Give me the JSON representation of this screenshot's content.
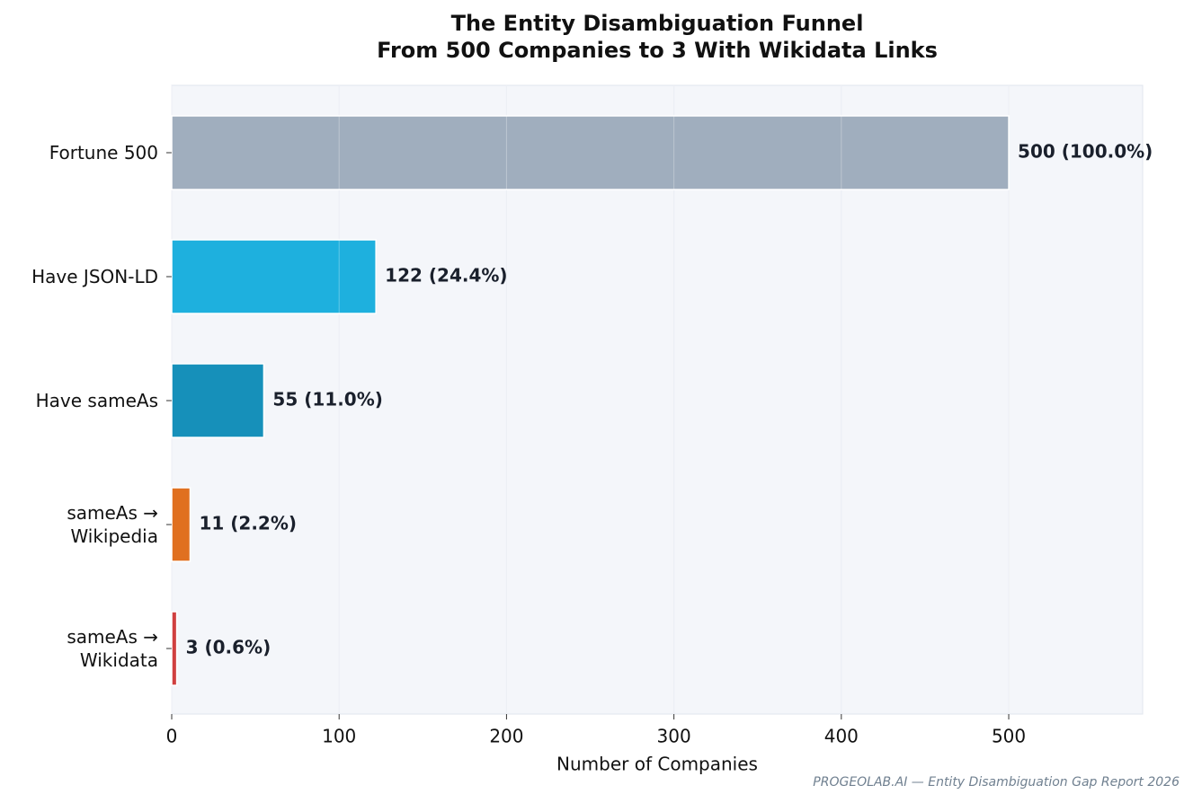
{
  "chart_data": {
    "type": "barh",
    "title": "The Entity Disambiguation Funnel",
    "subtitle": "From 500 Companies to 3 With Wikidata Links",
    "categories": [
      "Fortune 500",
      "Have JSON-LD",
      "Have sameAs",
      "sameAs →\nWikipedia",
      "sameAs →\nWikidata"
    ],
    "values": [
      500,
      122,
      55,
      11,
      3
    ],
    "value_labels": [
      "500  (100.0%)",
      "122  (24.4%)",
      "55  (11.0%)",
      "11  (2.2%)",
      "3  (0.6%)"
    ],
    "colors": [
      "#a0aebe",
      "#1eb0de",
      "#1690ba",
      "#e07020",
      "#d04040"
    ],
    "xlabel": "Number of Companies",
    "xlim": [
      0,
      580
    ],
    "xticks": [
      0,
      100,
      200,
      300,
      400,
      500
    ],
    "grid": true,
    "footnote": "PROGEOLAB.AI — Entity Disambiguation Gap Report 2026"
  }
}
